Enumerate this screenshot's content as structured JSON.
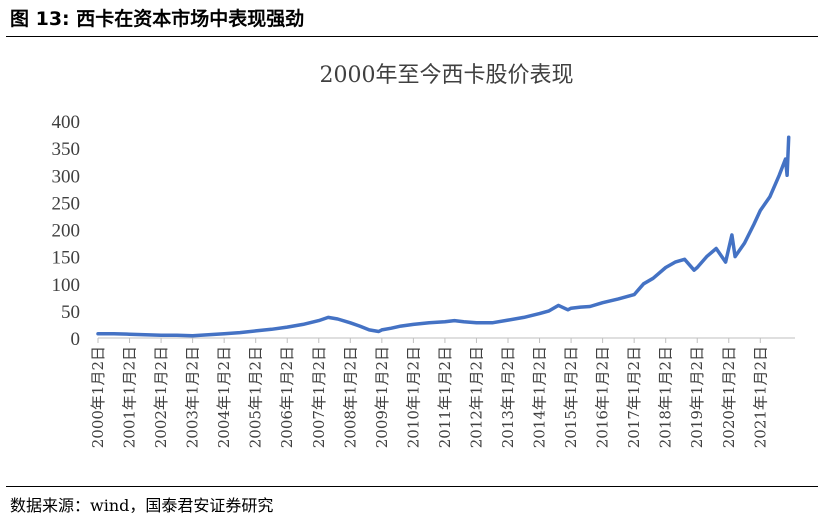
{
  "figure_label": "图 13:  西卡在资本市场中表现强劲",
  "source_note": "数据来源：wind，国泰君安证券研究",
  "chart_data": {
    "type": "line",
    "title": "2000年至今西卡股价表现",
    "xlabel": "",
    "ylabel": "",
    "ylim": [
      0,
      400
    ],
    "y_ticks": [
      0,
      50,
      100,
      150,
      200,
      250,
      300,
      350,
      400
    ],
    "x_ticks": [
      "2000年1月2日",
      "2001年1月2日",
      "2002年1月2日",
      "2003年1月2日",
      "2004年1月2日",
      "2005年1月2日",
      "2006年1月2日",
      "2007年1月2日",
      "2008年1月2日",
      "2009年1月2日",
      "2010年1月2日",
      "2011年1月2日",
      "2012年1月2日",
      "2013年1月2日",
      "2014年1月2日",
      "2015年1月2日",
      "2016年1月2日",
      "2017年1月2日",
      "2018年1月2日",
      "2019年1月2日",
      "2020年1月2日",
      "2021年1月2日"
    ],
    "grid": false,
    "line_color": "#4472C4",
    "series": [
      {
        "name": "",
        "x": [
          2000.0,
          2000.5,
          2001.0,
          2001.5,
          2002.0,
          2002.5,
          2003.0,
          2003.5,
          2004.0,
          2004.5,
          2005.0,
          2005.5,
          2006.0,
          2006.5,
          2007.0,
          2007.3,
          2007.6,
          2008.0,
          2008.3,
          2008.6,
          2008.9,
          2009.0,
          2009.3,
          2009.6,
          2010.0,
          2010.5,
          2011.0,
          2011.3,
          2011.6,
          2012.0,
          2012.5,
          2013.0,
          2013.5,
          2014.0,
          2014.3,
          2014.6,
          2014.9,
          2015.0,
          2015.3,
          2015.6,
          2016.0,
          2016.5,
          2017.0,
          2017.3,
          2017.6,
          2018.0,
          2018.3,
          2018.6,
          2018.9,
          2019.0,
          2019.3,
          2019.6,
          2019.9,
          2020.1,
          2020.2,
          2020.5,
          2020.8,
          2021.0,
          2021.3,
          2021.6,
          2021.8,
          2021.85,
          2021.9
        ],
        "y": [
          8,
          8,
          7,
          6,
          5,
          5,
          4,
          6,
          8,
          10,
          13,
          16,
          20,
          25,
          32,
          38,
          35,
          28,
          22,
          15,
          12,
          15,
          18,
          22,
          25,
          28,
          30,
          32,
          30,
          28,
          28,
          33,
          38,
          45,
          50,
          60,
          52,
          55,
          57,
          58,
          65,
          72,
          80,
          100,
          110,
          130,
          140,
          145,
          125,
          130,
          150,
          165,
          140,
          190,
          150,
          175,
          210,
          235,
          260,
          300,
          330,
          300,
          370
        ]
      }
    ]
  }
}
